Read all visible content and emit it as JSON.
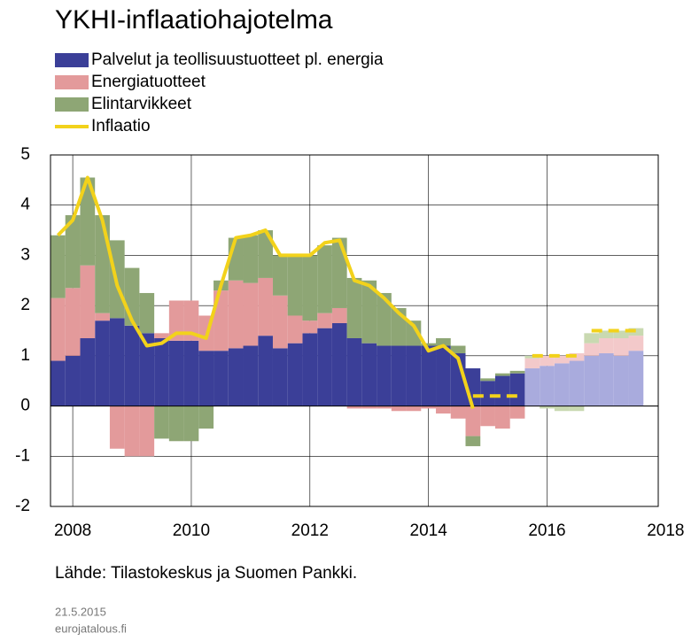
{
  "chart_data": {
    "type": "bar",
    "stacked": true,
    "title": "YKHI-inflaatiohajotelma",
    "source": "Lähde: Tilastokeskus ja Suomen Pankki.",
    "date": "21.5.2015",
    "site": "eurojatalous.fi",
    "x": [
      2007.75,
      2008,
      2008.25,
      2008.5,
      2008.75,
      2009,
      2009.25,
      2009.5,
      2009.75,
      2010,
      2010.25,
      2010.5,
      2010.75,
      2011,
      2011.25,
      2011.5,
      2011.75,
      2012,
      2012.25,
      2012.5,
      2012.75,
      2013,
      2013.25,
      2013.5,
      2013.75,
      2014,
      2014.25,
      2014.5,
      2014.75,
      2015,
      2015.25,
      2015.5,
      2015.75,
      2016,
      2016.25,
      2016.5,
      2016.75,
      2017,
      2017.25,
      2017.5
    ],
    "xlim": [
      2007.625,
      2017.875
    ],
    "xticks": [
      2008,
      2010,
      2012,
      2014,
      2016,
      2018
    ],
    "ylim": [
      -2,
      5
    ],
    "yticks": [
      -2,
      -1,
      0,
      1,
      2,
      3,
      4,
      5
    ],
    "grid": true,
    "forecast_start": 32,
    "series": [
      {
        "name": "Palvelut ja teollisuustuotteet pl. energia",
        "type": "bar",
        "color": "#3b3f98",
        "forecast_color": "#a9abdd",
        "values": [
          0.9,
          1.0,
          1.35,
          1.7,
          1.75,
          1.6,
          1.45,
          1.35,
          1.3,
          1.3,
          1.1,
          1.1,
          1.15,
          1.2,
          1.4,
          1.15,
          1.25,
          1.45,
          1.55,
          1.65,
          1.35,
          1.25,
          1.2,
          1.2,
          1.2,
          1.2,
          1.2,
          1.05,
          0.75,
          0.5,
          0.6,
          0.65,
          0.75,
          0.8,
          0.85,
          0.9,
          1.0,
          1.05,
          1.0,
          1.1
        ]
      },
      {
        "name": "Energiatuotteet",
        "type": "bar",
        "color": "#e39a9b",
        "forecast_color": "#f3c9ca",
        "values": [
          1.25,
          1.35,
          1.45,
          0.15,
          -0.85,
          -1.0,
          -1.0,
          0.1,
          0.8,
          0.8,
          0.7,
          1.2,
          1.35,
          1.25,
          1.15,
          1.05,
          0.55,
          0.25,
          0.3,
          0.3,
          -0.05,
          -0.05,
          -0.05,
          -0.1,
          -0.1,
          -0.05,
          -0.15,
          -0.25,
          -0.6,
          -0.4,
          -0.45,
          -0.25,
          0.2,
          0.2,
          0.15,
          0.15,
          0.25,
          0.3,
          0.35,
          0.3
        ]
      },
      {
        "name": "Elintarvikkeet",
        "type": "bar",
        "color": "#8ea675",
        "forecast_color": "#c9d9b1",
        "values": [
          1.25,
          1.45,
          1.75,
          1.95,
          1.55,
          1.15,
          0.8,
          -0.65,
          -0.7,
          -0.7,
          -0.45,
          0.2,
          0.85,
          0.95,
          0.95,
          0.8,
          1.2,
          1.3,
          1.35,
          1.4,
          1.2,
          1.25,
          1.05,
          0.75,
          0.5,
          0.05,
          0.15,
          0.15,
          -0.2,
          0.05,
          0.05,
          0.05,
          0.05,
          -0.05,
          -0.1,
          -0.1,
          0.2,
          0.15,
          0.15,
          0.15
        ]
      },
      {
        "name": "Inflaatio",
        "type": "line",
        "color": "#f2d21b",
        "values": [
          3.4,
          3.7,
          4.55,
          3.7,
          2.4,
          1.7,
          1.2,
          1.25,
          1.45,
          1.45,
          1.35,
          2.4,
          3.35,
          3.4,
          3.5,
          3.0,
          3.0,
          3.0,
          3.25,
          3.3,
          2.5,
          2.4,
          2.15,
          1.85,
          1.6,
          1.1,
          1.2,
          0.95,
          -0.05,
          null,
          null,
          null,
          null,
          null,
          null,
          null,
          null,
          null,
          null,
          null
        ]
      },
      {
        "type": "line",
        "color": "#f2d21b",
        "dashed": true,
        "x": [
          2014.75,
          2015.6,
          2015.65,
          2015.75,
          2016.6,
          2016.65,
          2016.75,
          2017.5
        ],
        "values": [
          0.2,
          0.2,
          null,
          1.0,
          1.0,
          null,
          1.5,
          1.5
        ]
      }
    ]
  }
}
